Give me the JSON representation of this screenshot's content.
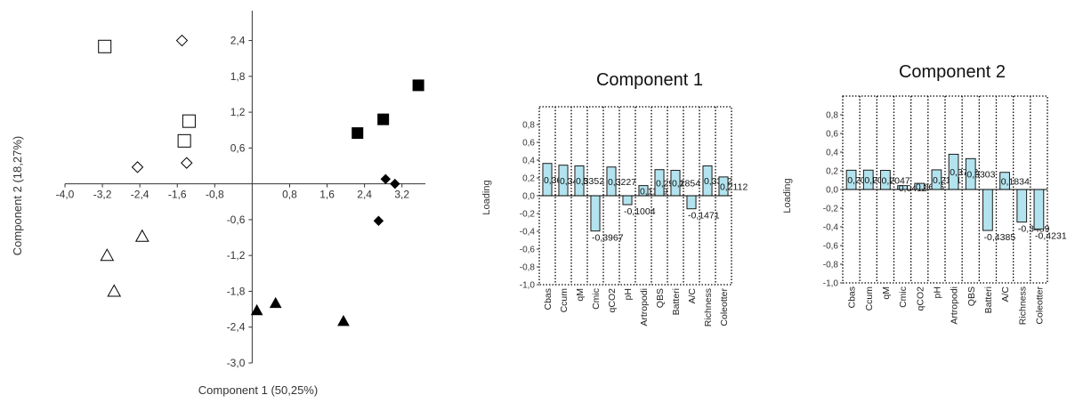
{
  "chart_data": [
    {
      "type": "scatter",
      "xlabel": "Component 1 (50,25%)",
      "ylabel": "Component 2 (18,27%)",
      "xlim": [
        -4.0,
        3.7
      ],
      "ylim": [
        -3.0,
        2.9
      ],
      "xticks": [
        -4.0,
        -3.2,
        -2.4,
        -1.6,
        -0.8,
        0.8,
        1.6,
        2.4,
        3.2
      ],
      "xtick_labels": [
        "-4,0",
        "-3,2",
        "-2,4",
        "-1,6",
        "-0,8",
        "0,8",
        "1,6",
        "2,4",
        "3,2"
      ],
      "yticks": [
        2.4,
        1.8,
        1.2,
        0.6,
        -0.6,
        -1.2,
        -1.8,
        -2.4,
        -3.0
      ],
      "ytick_labels": [
        "2,4",
        "1,8",
        "1,2",
        "0,6",
        "-0,6",
        "-1,2",
        "-1,8",
        "-2,4",
        "-3,0"
      ],
      "series": [
        {
          "marker": "square-open",
          "points": [
            [
              -3.15,
              2.3
            ],
            [
              -1.35,
              1.05
            ],
            [
              -1.45,
              0.72
            ]
          ]
        },
        {
          "marker": "diamond-open",
          "points": [
            [
              -1.5,
              2.4
            ],
            [
              -2.45,
              0.28
            ],
            [
              -1.4,
              0.35
            ]
          ]
        },
        {
          "marker": "square-filled",
          "points": [
            [
              3.55,
              1.65
            ],
            [
              2.8,
              1.08
            ],
            [
              2.25,
              0.85
            ]
          ]
        },
        {
          "marker": "diamond-filled",
          "points": [
            [
              2.85,
              0.08
            ],
            [
              3.05,
              0.0
            ],
            [
              2.7,
              -0.62
            ]
          ]
        },
        {
          "marker": "triangle-open",
          "points": [
            [
              -2.35,
              -0.88
            ],
            [
              -3.1,
              -1.2
            ],
            [
              -2.95,
              -1.8
            ]
          ]
        },
        {
          "marker": "triangle-filled",
          "points": [
            [
              0.5,
              -2.0
            ],
            [
              0.1,
              -2.12
            ],
            [
              1.95,
              -2.3
            ]
          ]
        }
      ]
    },
    {
      "type": "bar",
      "title": "Component 1",
      "ylabel": "Loading",
      "ylim": [
        -1.0,
        1.0
      ],
      "yticks": [
        0.8,
        0.6,
        0.4,
        0.2,
        0.0,
        -0.2,
        -0.4,
        -0.6,
        -0.8,
        -1.0
      ],
      "ytick_labels": [
        "0,8",
        "0,6",
        "0,4",
        "0,2",
        "0,0",
        "-0,2",
        "-0,4",
        "-0,6",
        "-0,8",
        "-1,0"
      ],
      "categories": [
        "Cbas",
        "Ccum",
        "qM",
        "Cmic",
        "qCO2",
        "pH",
        "Artropodi",
        "QBS",
        "Batteri",
        "A/C",
        "Richness",
        "Coleotter"
      ],
      "values": [
        0.3629,
        0.3435,
        0.3352,
        -0.3967,
        0.3227,
        -0.1004,
        0.1139,
        0.2931,
        0.2854,
        -0.1471,
        0.3352,
        0.2112
      ],
      "value_labels": [
        "0,36",
        "0,3435",
        "0,3352",
        "-0,3967",
        "0,3227",
        "-0,1004",
        "0,1139",
        "0,2931",
        "0,2854",
        "-0,1471",
        "0,3352",
        "0,2112"
      ]
    },
    {
      "type": "bar",
      "title": "Component 2",
      "ylabel": "Loading",
      "ylim": [
        -1.0,
        1.0
      ],
      "yticks": [
        0.8,
        0.6,
        0.4,
        0.2,
        0.0,
        -0.2,
        -0.4,
        -0.6,
        -0.8,
        -1.0
      ],
      "ytick_labels": [
        "0,8",
        "0,6",
        "0,4",
        "0,2",
        "0,0",
        "-0,2",
        "-0,4",
        "-0,6",
        "-0,8",
        "-1,0"
      ],
      "categories": [
        "Cbas",
        "Ccum",
        "qM",
        "Cmic",
        "qCO2",
        "pH",
        "Artropodi",
        "QBS",
        "Batteri",
        "A/C",
        "Richness",
        "Coleotter"
      ],
      "values": [
        0.2061,
        0.2071,
        0.2047,
        0.0412,
        0.0656,
        0.2101,
        0.3772,
        0.3303,
        -0.4385,
        0.1834,
        -0.3489,
        -0.4231
      ],
      "value_labels": [
        "0,2061",
        "0,2071",
        "0,2047",
        "0,0412",
        "0,0656",
        "0,2101",
        "0,3772",
        "0,3303",
        "-0,4385",
        "0,1834",
        "-0,3489",
        "-0,4231"
      ]
    }
  ]
}
